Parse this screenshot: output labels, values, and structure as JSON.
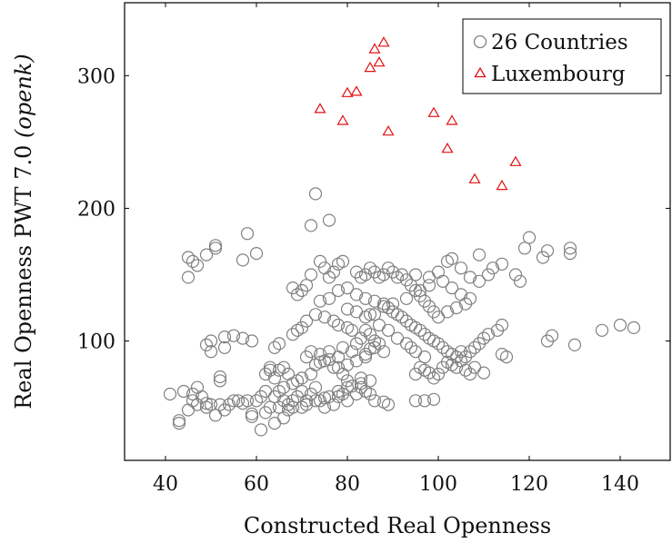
{
  "chart_data": {
    "type": "scatter",
    "xlabel": "Constructed Real Openness",
    "ylabel": "Real Openness PWT 7.0",
    "ylabel_suffix": "(openk)",
    "xlim": [
      31,
      151
    ],
    "ylim": [
      10,
      355
    ],
    "xticks": [
      40,
      60,
      80,
      100,
      120,
      140
    ],
    "yticks": [
      100,
      200,
      300
    ],
    "grid": false,
    "legend_position": "top-right",
    "series": [
      {
        "name": "26 Countries",
        "marker": "circle",
        "color": "#808080",
        "points": [
          [
            41,
            60
          ],
          [
            43,
            40
          ],
          [
            43,
            38
          ],
          [
            44,
            62
          ],
          [
            45,
            48
          ],
          [
            46,
            55
          ],
          [
            46,
            60
          ],
          [
            47,
            65
          ],
          [
            48,
            58
          ],
          [
            47,
            52
          ],
          [
            49,
            53
          ],
          [
            49,
            50
          ],
          [
            50,
            52
          ],
          [
            51,
            44
          ],
          [
            52,
            52
          ],
          [
            53,
            48
          ],
          [
            54,
            52
          ],
          [
            56,
            55
          ],
          [
            58,
            55
          ],
          [
            59,
            43
          ],
          [
            59,
            45
          ],
          [
            60,
            55
          ],
          [
            61,
            58
          ],
          [
            61,
            33
          ],
          [
            62,
            46
          ],
          [
            63,
            50
          ],
          [
            64,
            58
          ],
          [
            64,
            38
          ],
          [
            65,
            50
          ],
          [
            66,
            42
          ],
          [
            67,
            48
          ],
          [
            68,
            55
          ],
          [
            69,
            58
          ],
          [
            70,
            62
          ],
          [
            71,
            55
          ],
          [
            72,
            60
          ],
          [
            73,
            65
          ],
          [
            74,
            55
          ],
          [
            75,
            50
          ],
          [
            76,
            58
          ],
          [
            77,
            52
          ],
          [
            78,
            58
          ],
          [
            79,
            60
          ],
          [
            80,
            65
          ],
          [
            80,
            55
          ],
          [
            82,
            60
          ],
          [
            83,
            65
          ],
          [
            84,
            62
          ],
          [
            85,
            70
          ],
          [
            83,
            72
          ],
          [
            80,
            70
          ],
          [
            79,
            75
          ],
          [
            77,
            80
          ],
          [
            75,
            85
          ],
          [
            73,
            82
          ],
          [
            72,
            75
          ],
          [
            70,
            72
          ],
          [
            69,
            70
          ],
          [
            68,
            68
          ],
          [
            66,
            65
          ],
          [
            64,
            72
          ],
          [
            63,
            80
          ],
          [
            65,
            78
          ],
          [
            67,
            75
          ],
          [
            71,
            88
          ],
          [
            74,
            90
          ],
          [
            76,
            92
          ],
          [
            78,
            88
          ],
          [
            79,
            95
          ],
          [
            81,
            92
          ],
          [
            82,
            98
          ],
          [
            84,
            90
          ],
          [
            85,
            94
          ],
          [
            86,
            95
          ],
          [
            88,
            92
          ],
          [
            87,
            98
          ],
          [
            86,
            100
          ],
          [
            85,
            105
          ],
          [
            84,
            108
          ],
          [
            83,
            102
          ],
          [
            81,
            108
          ],
          [
            80,
            110
          ],
          [
            78,
            112
          ],
          [
            77,
            115
          ],
          [
            75,
            118
          ],
          [
            73,
            120
          ],
          [
            71,
            115
          ],
          [
            70,
            110
          ],
          [
            69,
            108
          ],
          [
            68,
            105
          ],
          [
            74,
            130
          ],
          [
            76,
            132
          ],
          [
            78,
            138
          ],
          [
            80,
            140
          ],
          [
            82,
            135
          ],
          [
            84,
            132
          ],
          [
            86,
            130
          ],
          [
            88,
            128
          ],
          [
            89,
            125
          ],
          [
            90,
            122
          ],
          [
            91,
            120
          ],
          [
            92,
            118
          ],
          [
            93,
            115
          ],
          [
            94,
            112
          ],
          [
            95,
            110
          ],
          [
            96,
            108
          ],
          [
            97,
            105
          ],
          [
            98,
            102
          ],
          [
            99,
            100
          ],
          [
            100,
            98
          ],
          [
            101,
            95
          ],
          [
            102,
            92
          ],
          [
            103,
            90
          ],
          [
            104,
            88
          ],
          [
            105,
            85
          ],
          [
            106,
            88
          ],
          [
            107,
            92
          ],
          [
            108,
            95
          ],
          [
            109,
            98
          ],
          [
            110,
            102
          ],
          [
            111,
            105
          ],
          [
            113,
            108
          ],
          [
            114,
            112
          ],
          [
            100,
            118
          ],
          [
            99,
            122
          ],
          [
            98,
            126
          ],
          [
            97,
            130
          ],
          [
            96,
            134
          ],
          [
            95,
            138
          ],
          [
            94,
            142
          ],
          [
            93,
            146
          ],
          [
            92,
            150
          ],
          [
            91,
            148
          ],
          [
            90,
            152
          ],
          [
            89,
            155
          ],
          [
            88,
            150
          ],
          [
            87,
            148
          ],
          [
            86,
            152
          ],
          [
            85,
            155
          ],
          [
            84,
            150
          ],
          [
            83,
            148
          ],
          [
            82,
            152
          ],
          [
            79,
            160
          ],
          [
            78,
            158
          ],
          [
            77,
            152
          ],
          [
            76,
            148
          ],
          [
            75,
            155
          ],
          [
            74,
            160
          ],
          [
            72,
            150
          ],
          [
            71,
            142
          ],
          [
            70,
            138
          ],
          [
            69,
            135
          ],
          [
            68,
            140
          ],
          [
            95,
            150
          ],
          [
            98,
            148
          ],
          [
            100,
            152
          ],
          [
            102,
            160
          ],
          [
            103,
            162
          ],
          [
            105,
            155
          ],
          [
            107,
            148
          ],
          [
            109,
            145
          ],
          [
            111,
            150
          ],
          [
            112,
            155
          ],
          [
            114,
            158
          ],
          [
            117,
            150
          ],
          [
            118,
            145
          ],
          [
            119,
            170
          ],
          [
            120,
            178
          ],
          [
            109,
            165
          ],
          [
            124,
            168
          ],
          [
            123,
            163
          ],
          [
            129,
            170
          ],
          [
            129,
            166
          ],
          [
            101,
            145
          ],
          [
            98,
            142
          ],
          [
            96,
            138
          ],
          [
            93,
            132
          ],
          [
            90,
            128
          ],
          [
            88,
            126
          ],
          [
            86,
            120
          ],
          [
            84,
            118
          ],
          [
            82,
            122
          ],
          [
            80,
            124
          ],
          [
            103,
            140
          ],
          [
            105,
            135
          ],
          [
            107,
            132
          ],
          [
            106,
            128
          ],
          [
            104,
            125
          ],
          [
            102,
            122
          ],
          [
            45,
            163
          ],
          [
            46,
            160
          ],
          [
            47,
            157
          ],
          [
            49,
            165
          ],
          [
            51,
            170
          ],
          [
            51,
            172
          ],
          [
            57,
            161
          ],
          [
            60,
            166
          ],
          [
            58,
            181
          ],
          [
            45,
            148
          ],
          [
            72,
            187
          ],
          [
            73,
            211
          ],
          [
            76,
            191
          ],
          [
            49,
            97
          ],
          [
            50,
            100
          ],
          [
            50,
            92
          ],
          [
            53,
            95
          ],
          [
            53,
            103
          ],
          [
            55,
            104
          ],
          [
            57,
            102
          ],
          [
            59,
            100
          ],
          [
            64,
            95
          ],
          [
            65,
            98
          ],
          [
            63,
            78
          ],
          [
            62,
            75
          ],
          [
            66,
            80
          ],
          [
            72,
            92
          ],
          [
            74,
            84
          ],
          [
            76,
            86
          ],
          [
            78,
            80
          ],
          [
            80,
            82
          ],
          [
            82,
            85
          ],
          [
            84,
            88
          ],
          [
            85,
            60
          ],
          [
            86,
            55
          ],
          [
            89,
            52
          ],
          [
            88,
            54
          ],
          [
            95,
            55
          ],
          [
            97,
            55
          ],
          [
            99,
            56
          ],
          [
            95,
            75
          ],
          [
            96,
            80
          ],
          [
            97,
            78
          ],
          [
            98,
            76
          ],
          [
            99,
            72
          ],
          [
            100,
            75
          ],
          [
            101,
            80
          ],
          [
            102,
            84
          ],
          [
            103,
            82
          ],
          [
            104,
            80
          ],
          [
            105,
            92
          ],
          [
            106,
            78
          ],
          [
            107,
            75
          ],
          [
            108,
            80
          ],
          [
            110,
            76
          ],
          [
            114,
            90
          ],
          [
            115,
            88
          ],
          [
            124,
            100
          ],
          [
            125,
            104
          ],
          [
            130,
            97
          ],
          [
            136,
            108
          ],
          [
            140,
            112
          ],
          [
            143,
            110
          ],
          [
            85,
            120
          ],
          [
            87,
            112
          ],
          [
            89,
            108
          ],
          [
            91,
            102
          ],
          [
            93,
            98
          ],
          [
            94,
            95
          ],
          [
            95,
            92
          ],
          [
            97,
            88
          ],
          [
            52,
            70
          ],
          [
            52,
            73
          ],
          [
            55,
            55
          ],
          [
            57,
            53
          ],
          [
            62,
            62
          ],
          [
            65,
            62
          ],
          [
            66,
            55
          ],
          [
            67,
            52
          ],
          [
            68,
            50
          ],
          [
            70,
            50
          ],
          [
            71,
            52
          ],
          [
            73,
            55
          ],
          [
            75,
            57
          ],
          [
            78,
            62
          ],
          [
            81,
            66
          ],
          [
            83,
            68
          ]
        ]
      },
      {
        "name": "Luxembourg",
        "marker": "triangle",
        "color": "#e01010",
        "points": [
          [
            74,
            275
          ],
          [
            79,
            266
          ],
          [
            80,
            287
          ],
          [
            82,
            288
          ],
          [
            85,
            306
          ],
          [
            86,
            320
          ],
          [
            87,
            310
          ],
          [
            88,
            325
          ],
          [
            89,
            258
          ],
          [
            99,
            272
          ],
          [
            102,
            245
          ],
          [
            103,
            266
          ],
          [
            108,
            222
          ],
          [
            114,
            217
          ],
          [
            117,
            235
          ]
        ]
      }
    ]
  }
}
